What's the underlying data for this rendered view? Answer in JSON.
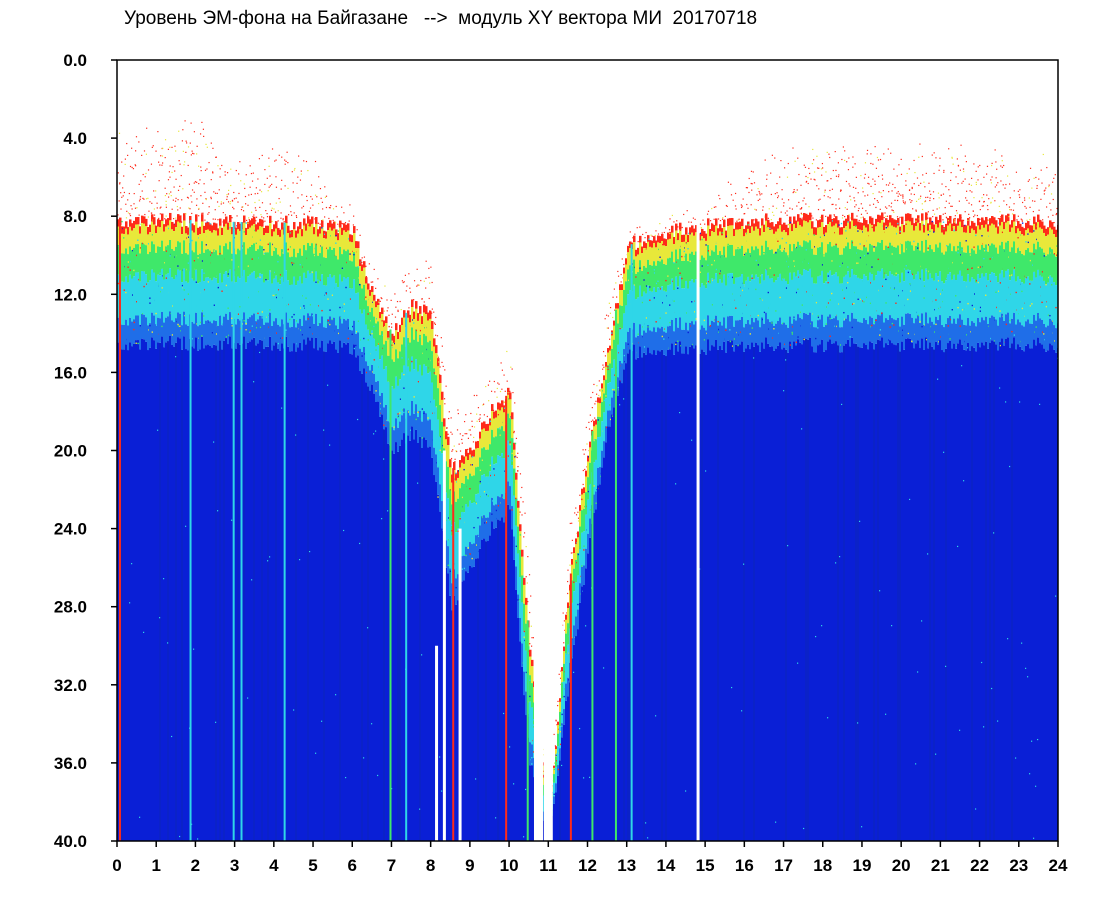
{
  "chart_data": {
    "type": "heatmap",
    "title": "Уровень ЭМ-фона на Байгазане   -->  модуль XY вектора МИ  20170718",
    "xlabel": "",
    "ylabel": "",
    "xlim": [
      0,
      24
    ],
    "ylim": [
      0,
      40
    ],
    "y_inverted": true,
    "x_ticks": [
      "0",
      "1",
      "2",
      "3",
      "4",
      "5",
      "6",
      "7",
      "8",
      "9",
      "10",
      "11",
      "12",
      "13",
      "14",
      "15",
      "16",
      "17",
      "18",
      "19",
      "20",
      "21",
      "22",
      "23",
      "24"
    ],
    "y_ticks": [
      "0.0",
      "4.0",
      "8.0",
      "12.0",
      "16.0",
      "20.0",
      "24.0",
      "28.0",
      "32.0",
      "36.0",
      "40.0"
    ],
    "grid": false,
    "colors": {
      "background": "#0a1fd6",
      "deep_blue": "#0b22c8",
      "cyan": "#2fd6e8",
      "green": "#3fe86a",
      "yellow": "#e8e83a",
      "red": "#ff2a1a"
    },
    "envelope": [
      {
        "hour": 0.0,
        "scatter_top": 3.5,
        "band_top": 8.2,
        "band_bottom": 14.5
      },
      {
        "hour": 1.0,
        "scatter_top": 3.2,
        "band_top": 8.2,
        "band_bottom": 14.5
      },
      {
        "hour": 2.0,
        "scatter_top": 2.8,
        "band_top": 8.2,
        "band_bottom": 14.5
      },
      {
        "hour": 3.0,
        "scatter_top": 4.5,
        "band_top": 8.3,
        "band_bottom": 14.5
      },
      {
        "hour": 4.0,
        "scatter_top": 4.2,
        "band_top": 8.3,
        "band_bottom": 14.5
      },
      {
        "hour": 5.0,
        "scatter_top": 5.0,
        "band_top": 8.4,
        "band_bottom": 14.6
      },
      {
        "hour": 6.0,
        "scatter_top": 7.5,
        "band_top": 8.7,
        "band_bottom": 14.8
      },
      {
        "hour": 6.5,
        "scatter_top": 10.5,
        "band_top": 12.0,
        "band_bottom": 17.0
      },
      {
        "hour": 7.0,
        "scatter_top": 11.5,
        "band_top": 14.0,
        "band_bottom": 20.0
      },
      {
        "hour": 7.5,
        "scatter_top": 10.0,
        "band_top": 12.5,
        "band_bottom": 19.0
      },
      {
        "hour": 8.0,
        "scatter_top": 10.0,
        "band_top": 13.0,
        "band_bottom": 20.0
      },
      {
        "hour": 8.5,
        "scatter_top": 18.0,
        "band_top": 21.0,
        "band_bottom": 28.0
      },
      {
        "hour": 9.0,
        "scatter_top": 17.0,
        "band_top": 20.0,
        "band_bottom": 26.0
      },
      {
        "hour": 9.5,
        "scatter_top": 15.5,
        "band_top": 18.0,
        "band_bottom": 24.0
      },
      {
        "hour": 10.0,
        "scatter_top": 14.5,
        "band_top": 17.0,
        "band_bottom": 23.0
      },
      {
        "hour": 10.5,
        "scatter_top": 26.0,
        "band_top": 30.0,
        "band_bottom": 36.0
      },
      {
        "hour": 11.0,
        "scatter_top": 36.0,
        "band_top": 39.0,
        "band_bottom": 40.0
      },
      {
        "hour": 11.5,
        "scatter_top": 24.0,
        "band_top": 27.0,
        "band_bottom": 32.0
      },
      {
        "hour": 12.0,
        "scatter_top": 17.0,
        "band_top": 20.0,
        "band_bottom": 25.0
      },
      {
        "hour": 12.5,
        "scatter_top": 12.0,
        "band_top": 15.0,
        "band_bottom": 19.0
      },
      {
        "hour": 13.0,
        "scatter_top": 8.5,
        "band_top": 9.5,
        "band_bottom": 15.0
      },
      {
        "hour": 14.0,
        "scatter_top": 8.0,
        "band_top": 8.8,
        "band_bottom": 14.8
      },
      {
        "hour": 15.0,
        "scatter_top": 7.0,
        "band_top": 8.5,
        "band_bottom": 14.7
      },
      {
        "hour": 16.0,
        "scatter_top": 5.5,
        "band_top": 8.3,
        "band_bottom": 14.6
      },
      {
        "hour": 17.0,
        "scatter_top": 4.5,
        "band_top": 8.2,
        "band_bottom": 14.6
      },
      {
        "hour": 18.0,
        "scatter_top": 4.0,
        "band_top": 8.2,
        "band_bottom": 14.6
      },
      {
        "hour": 19.0,
        "scatter_top": 4.3,
        "band_top": 8.2,
        "band_bottom": 14.6
      },
      {
        "hour": 20.0,
        "scatter_top": 4.0,
        "band_top": 8.2,
        "band_bottom": 14.6
      },
      {
        "hour": 21.0,
        "scatter_top": 3.8,
        "band_top": 8.2,
        "band_bottom": 14.6
      },
      {
        "hour": 22.0,
        "scatter_top": 4.2,
        "band_top": 8.2,
        "band_bottom": 14.6
      },
      {
        "hour": 23.0,
        "scatter_top": 4.5,
        "band_top": 8.3,
        "band_bottom": 14.6
      },
      {
        "hour": 24.0,
        "scatter_top": 4.5,
        "band_top": 8.3,
        "band_bottom": 14.6
      }
    ],
    "white_gaps": [
      {
        "hour": 8.15,
        "from": 30.0,
        "to": 40.0
      },
      {
        "hour": 8.35,
        "from": 20.0,
        "to": 40.0
      },
      {
        "hour": 8.75,
        "from": 24.0,
        "to": 40.0
      },
      {
        "hour": 10.75,
        "from": 0.0,
        "to": 40.0
      },
      {
        "hour": 11.0,
        "from": 0.0,
        "to": 40.0
      },
      {
        "hour": 11.25,
        "from": 0.0,
        "to": 31.0
      },
      {
        "hour": 14.82,
        "from": 8.0,
        "to": 40.0
      }
    ],
    "vertical_streaks": [
      {
        "hour": 0.05,
        "color": "red"
      },
      {
        "hour": 1.85,
        "color": "cyan"
      },
      {
        "hour": 2.95,
        "color": "cyan"
      },
      {
        "hour": 3.15,
        "color": "cyan"
      },
      {
        "hour": 4.25,
        "color": "cyan"
      },
      {
        "hour": 6.95,
        "color": "green"
      },
      {
        "hour": 7.35,
        "color": "cyan"
      },
      {
        "hour": 8.55,
        "color": "red"
      },
      {
        "hour": 9.9,
        "color": "red"
      },
      {
        "hour": 10.45,
        "color": "green"
      },
      {
        "hour": 11.55,
        "color": "red"
      },
      {
        "hour": 12.1,
        "color": "green"
      },
      {
        "hour": 12.7,
        "color": "green"
      },
      {
        "hour": 13.1,
        "color": "cyan"
      }
    ]
  }
}
